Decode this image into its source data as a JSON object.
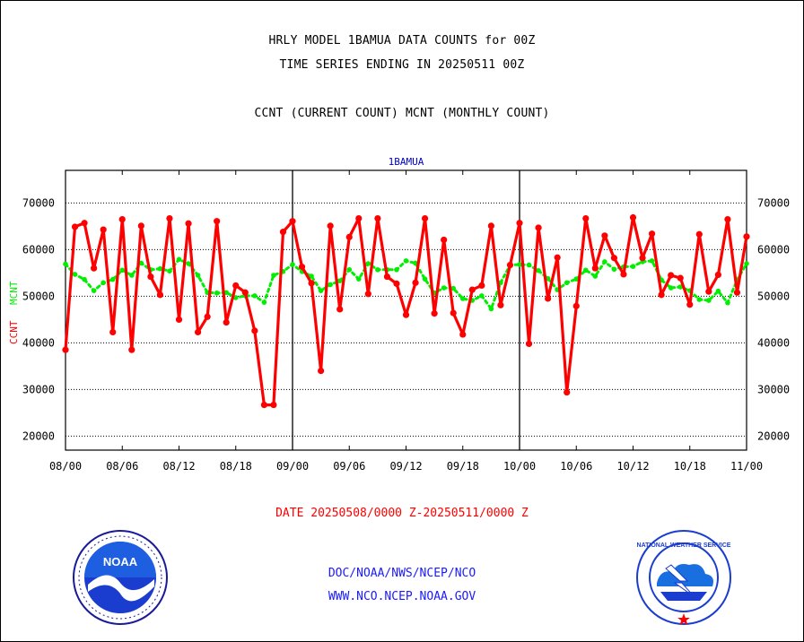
{
  "header": {
    "title_line1": "HRLY MODEL 1BAMUA DATA COUNTS for 00Z",
    "title_line2": "TIME SERIES ENDING IN 20250511 00Z",
    "subtitle": "CCNT (CURRENT COUNT) MCNT (MONTHLY COUNT)"
  },
  "footer": {
    "date_range": "DATE 20250508/0000 Z-20250511/0000 Z",
    "org_line": "DOC/NOAA/NWS/NCEP/NCO",
    "url_line": "WWW.NCO.NCEP.NOAA.GOV"
  },
  "logos": {
    "noaa_text": "NOAA",
    "nws_text": "NATIONAL WEATHER SERVICE"
  },
  "colors": {
    "ccnt": "#ff0000",
    "mcnt": "#00ee00",
    "station_label": "#0000cc",
    "footer_link": "#1a1aff",
    "date_text": "#ff0000"
  },
  "chart_data": {
    "type": "line",
    "station_label": "1BAMUA",
    "ylabel_left_ccnt": "CCNT",
    "ylabel_left_mcnt": "MCNT",
    "ylim": [
      17000,
      77000
    ],
    "yticks": [
      20000,
      30000,
      40000,
      50000,
      60000,
      70000
    ],
    "xticks": [
      "08/00",
      "08/06",
      "08/12",
      "08/18",
      "09/00",
      "09/06",
      "09/12",
      "09/18",
      "10/00",
      "10/06",
      "10/12",
      "10/18",
      "11/00"
    ],
    "grid": true,
    "series": [
      {
        "name": "CCNT",
        "values": [
          38500,
          64900,
          65700,
          56000,
          64300,
          42300,
          66500,
          38500,
          65100,
          54200,
          50300,
          66700,
          45000,
          65600,
          42300,
          45600,
          66100,
          44400,
          52300,
          50800,
          42600,
          26700,
          26700,
          63800,
          66100,
          56300,
          52800,
          34000,
          65100,
          47200,
          62700,
          66700,
          50500,
          66700,
          54200,
          52700,
          46000,
          52900,
          66700,
          46300,
          62100,
          46400,
          41800,
          51400,
          52300,
          65100,
          48100,
          56700,
          65700,
          39800,
          64700,
          49500,
          58300,
          29400,
          47900,
          66700,
          56000,
          63000,
          58200,
          54700,
          66900,
          58200,
          63400,
          50300,
          54500,
          53900,
          48200,
          63300,
          51000,
          54600,
          66500,
          50800,
          62800
        ],
        "color": "#ff0000"
      },
      {
        "name": "MCNT",
        "values": [
          56900,
          54700,
          53600,
          51200,
          52900,
          53600,
          55600,
          54500,
          57100,
          55700,
          55900,
          55400,
          57900,
          57000,
          54500,
          50800,
          50700,
          50800,
          49700,
          50100,
          50100,
          48700,
          54500,
          55300,
          56800,
          55300,
          54300,
          51200,
          52500,
          53300,
          55700,
          53700,
          57000,
          55700,
          55700,
          55700,
          57600,
          57100,
          53700,
          50700,
          51800,
          51700,
          49500,
          49100,
          50100,
          47300,
          52900,
          56700,
          56800,
          56700,
          55500,
          53800,
          51400,
          52900,
          53700,
          55600,
          54300,
          57400,
          55800,
          56300,
          56400,
          57400,
          57600,
          53500,
          51800,
          52000,
          51200,
          49300,
          49100,
          51100,
          48600,
          53500,
          57000
        ],
        "color": "#00ee00"
      }
    ]
  }
}
